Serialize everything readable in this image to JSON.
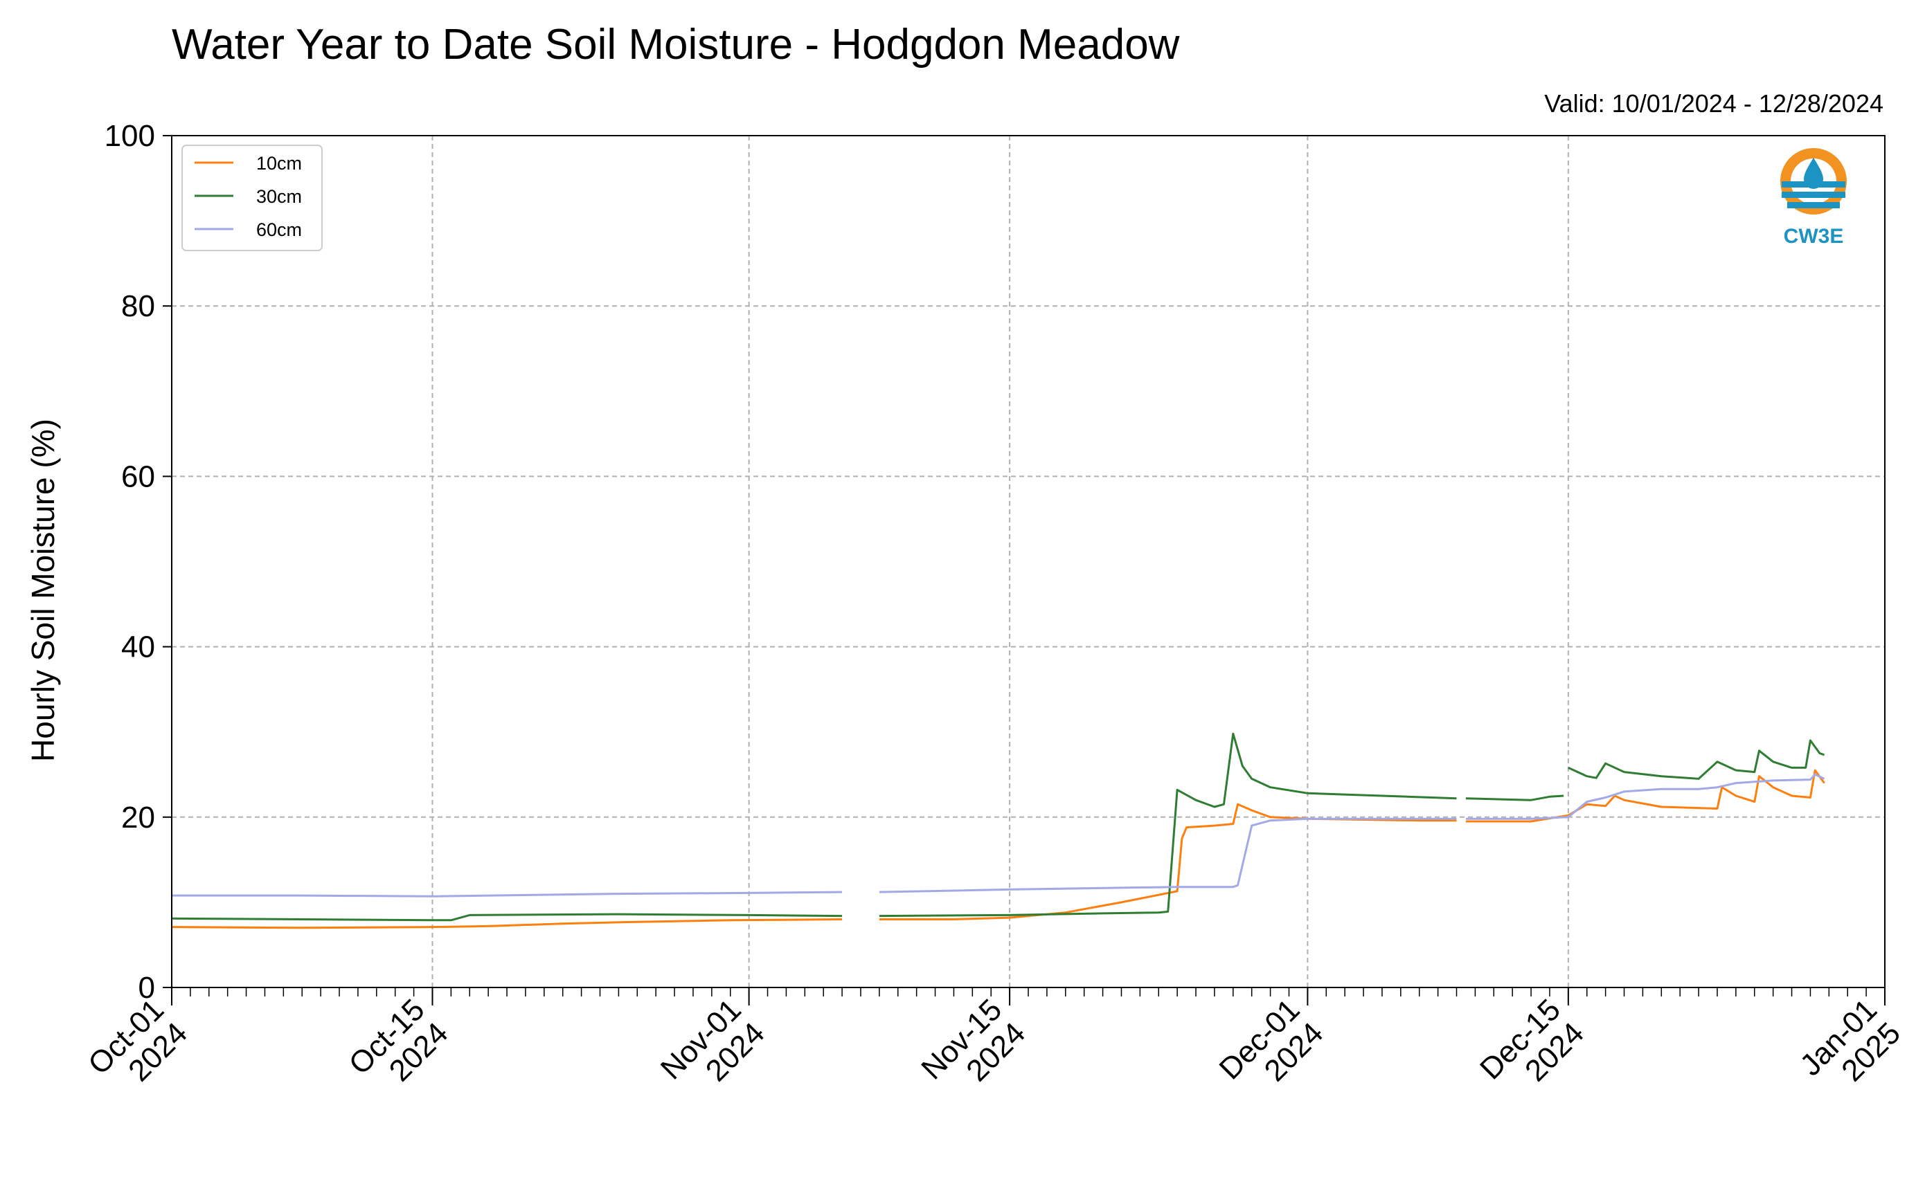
{
  "chart_data": {
    "type": "line",
    "title": "Water Year to Date Soil Moisture - Hodgdon Meadow",
    "subtitle": "Valid: 10/01/2024 - 12/28/2024",
    "xlabel": "",
    "ylabel": "Hourly Soil Moisture (%)",
    "xlim": [
      "2024-10-01",
      "2025-01-01"
    ],
    "ylim": [
      0,
      100
    ],
    "yticks": [
      0,
      20,
      40,
      60,
      80,
      100
    ],
    "xticks": [
      {
        "date": "2024-10-01",
        "line1": "Oct-01",
        "line2": "2024"
      },
      {
        "date": "2024-10-15",
        "line1": "Oct-15",
        "line2": "2024"
      },
      {
        "date": "2024-11-01",
        "line1": "Nov-01",
        "line2": "2024"
      },
      {
        "date": "2024-11-15",
        "line1": "Nov-15",
        "line2": "2024"
      },
      {
        "date": "2024-12-01",
        "line1": "Dec-01",
        "line2": "2024"
      },
      {
        "date": "2024-12-15",
        "line1": "Dec-15",
        "line2": "2024"
      },
      {
        "date": "2025-01-01",
        "line1": "Jan-01",
        "line2": "2025"
      }
    ],
    "grid": true,
    "legend_position": "top-left",
    "series": [
      {
        "name": "10cm",
        "color": "#ff7f0e",
        "segments": [
          [
            [
              "2024-10-01",
              7.1
            ],
            [
              "2024-10-08",
              7.0
            ],
            [
              "2024-10-15",
              7.1
            ]
          ],
          [
            [
              "2024-10-15",
              7.1
            ],
            [
              "2024-10-18",
              7.2
            ],
            [
              "2024-10-22",
              7.5
            ],
            [
              "2024-10-26",
              7.7
            ],
            [
              "2024-10-31",
              7.9
            ],
            [
              "2024-11-06",
              8.0
            ]
          ],
          [
            [
              "2024-11-08",
              8.0
            ],
            [
              "2024-11-12",
              8.0
            ],
            [
              "2024-11-15",
              8.2
            ],
            [
              "2024-11-18",
              8.8
            ],
            [
              "2024-11-21",
              10.0
            ],
            [
              "2024-11-24",
              11.3
            ],
            [
              "2024-11-24T06",
              17.5
            ],
            [
              "2024-11-24T12",
              18.8
            ],
            [
              "2024-11-26",
              19.0
            ],
            [
              "2024-11-27",
              19.2
            ],
            [
              "2024-11-27T06",
              21.5
            ],
            [
              "2024-11-28",
              20.8
            ],
            [
              "2024-11-29",
              20.0
            ],
            [
              "2024-12-01",
              19.8
            ],
            [
              "2024-12-07",
              19.6
            ],
            [
              "2024-12-09",
              19.6
            ]
          ],
          [
            [
              "2024-12-09T12",
              19.5
            ],
            [
              "2024-12-13",
              19.5
            ],
            [
              "2024-12-15",
              20.2
            ]
          ],
          [
            [
              "2024-12-15",
              20.2
            ],
            [
              "2024-12-16",
              21.5
            ],
            [
              "2024-12-17",
              21.3
            ],
            [
              "2024-12-17T12",
              22.5
            ],
            [
              "2024-12-18",
              22.0
            ],
            [
              "2024-12-20",
              21.2
            ],
            [
              "2024-12-23",
              21.0
            ],
            [
              "2024-12-23T06",
              23.5
            ],
            [
              "2024-12-24",
              22.5
            ],
            [
              "2024-12-25",
              21.8
            ],
            [
              "2024-12-25T06",
              24.8
            ],
            [
              "2024-12-26",
              23.5
            ],
            [
              "2024-12-27",
              22.5
            ],
            [
              "2024-12-28",
              22.3
            ],
            [
              "2024-12-28T06",
              25.5
            ],
            [
              "2024-12-28T18",
              24.0
            ]
          ]
        ]
      },
      {
        "name": "30cm",
        "color": "#2e7d32",
        "segments": [
          [
            [
              "2024-10-01",
              8.1
            ],
            [
              "2024-10-08",
              8.0
            ],
            [
              "2024-10-15",
              7.9
            ]
          ],
          [
            [
              "2024-10-15",
              7.9
            ],
            [
              "2024-10-16",
              7.9
            ],
            [
              "2024-10-17",
              8.5
            ],
            [
              "2024-10-25",
              8.6
            ],
            [
              "2024-11-01",
              8.5
            ],
            [
              "2024-11-06",
              8.4
            ]
          ],
          [
            [
              "2024-11-08",
              8.4
            ],
            [
              "2024-11-15",
              8.5
            ],
            [
              "2024-11-20",
              8.7
            ],
            [
              "2024-11-23",
              8.8
            ],
            [
              "2024-11-23T12",
              8.9
            ],
            [
              "2024-11-24",
              23.2
            ],
            [
              "2024-11-25",
              22.0
            ],
            [
              "2024-11-26",
              21.2
            ],
            [
              "2024-11-26T12",
              21.5
            ],
            [
              "2024-11-27",
              29.8
            ],
            [
              "2024-11-27T12",
              26.0
            ],
            [
              "2024-11-28",
              24.5
            ],
            [
              "2024-11-29",
              23.5
            ],
            [
              "2024-12-01",
              22.8
            ],
            [
              "2024-12-05",
              22.5
            ],
            [
              "2024-12-09",
              22.2
            ]
          ],
          [
            [
              "2024-12-09T12",
              22.2
            ],
            [
              "2024-12-13",
              22.0
            ],
            [
              "2024-12-14",
              22.4
            ],
            [
              "2024-12-14T18",
              22.5
            ]
          ],
          [
            [
              "2024-12-15",
              25.8
            ],
            [
              "2024-12-16",
              24.8
            ],
            [
              "2024-12-16T12",
              24.6
            ],
            [
              "2024-12-17",
              26.3
            ],
            [
              "2024-12-18",
              25.3
            ],
            [
              "2024-12-20",
              24.8
            ],
            [
              "2024-12-22",
              24.5
            ],
            [
              "2024-12-23",
              26.5
            ],
            [
              "2024-12-24",
              25.5
            ],
            [
              "2024-12-25",
              25.3
            ],
            [
              "2024-12-25T06",
              27.8
            ],
            [
              "2024-12-26",
              26.5
            ],
            [
              "2024-12-27",
              25.8
            ],
            [
              "2024-12-27T18",
              25.8
            ],
            [
              "2024-12-28",
              29.0
            ],
            [
              "2024-12-28T12",
              27.5
            ],
            [
              "2024-12-28T18",
              27.3
            ]
          ]
        ]
      },
      {
        "name": "60cm",
        "color": "#a3a9e6",
        "segments": [
          [
            [
              "2024-10-01",
              10.8
            ],
            [
              "2024-10-08",
              10.8
            ],
            [
              "2024-10-15",
              10.7
            ]
          ],
          [
            [
              "2024-10-15",
              10.7
            ],
            [
              "2024-10-25",
              11.0
            ],
            [
              "2024-11-01",
              11.1
            ],
            [
              "2024-11-06",
              11.2
            ]
          ],
          [
            [
              "2024-11-08",
              11.2
            ],
            [
              "2024-11-15",
              11.5
            ],
            [
              "2024-11-24",
              11.8
            ],
            [
              "2024-11-27",
              11.8
            ],
            [
              "2024-11-27T06",
              12.0
            ],
            [
              "2024-11-28",
              19.0
            ],
            [
              "2024-11-29",
              19.6
            ],
            [
              "2024-12-01",
              19.8
            ],
            [
              "2024-12-09",
              19.8
            ]
          ],
          [
            [
              "2024-12-09T12",
              19.8
            ],
            [
              "2024-12-13",
              19.8
            ],
            [
              "2024-12-15",
              20.0
            ]
          ],
          [
            [
              "2024-12-15",
              20.0
            ],
            [
              "2024-12-16",
              21.8
            ],
            [
              "2024-12-17",
              22.3
            ],
            [
              "2024-12-18",
              23.0
            ],
            [
              "2024-12-20",
              23.3
            ],
            [
              "2024-12-22",
              23.3
            ],
            [
              "2024-12-23",
              23.5
            ],
            [
              "2024-12-24",
              24.0
            ],
            [
              "2024-12-26",
              24.3
            ],
            [
              "2024-12-28",
              24.4
            ],
            [
              "2024-12-28T06",
              25.0
            ],
            [
              "2024-12-28T18",
              24.5
            ]
          ]
        ]
      }
    ]
  },
  "logo": {
    "text": "CW3E",
    "ring_color": "#f29220",
    "water_color": "#1b93c3"
  },
  "colors": {
    "grid": "#b0b0b0",
    "axis": "#000000"
  }
}
